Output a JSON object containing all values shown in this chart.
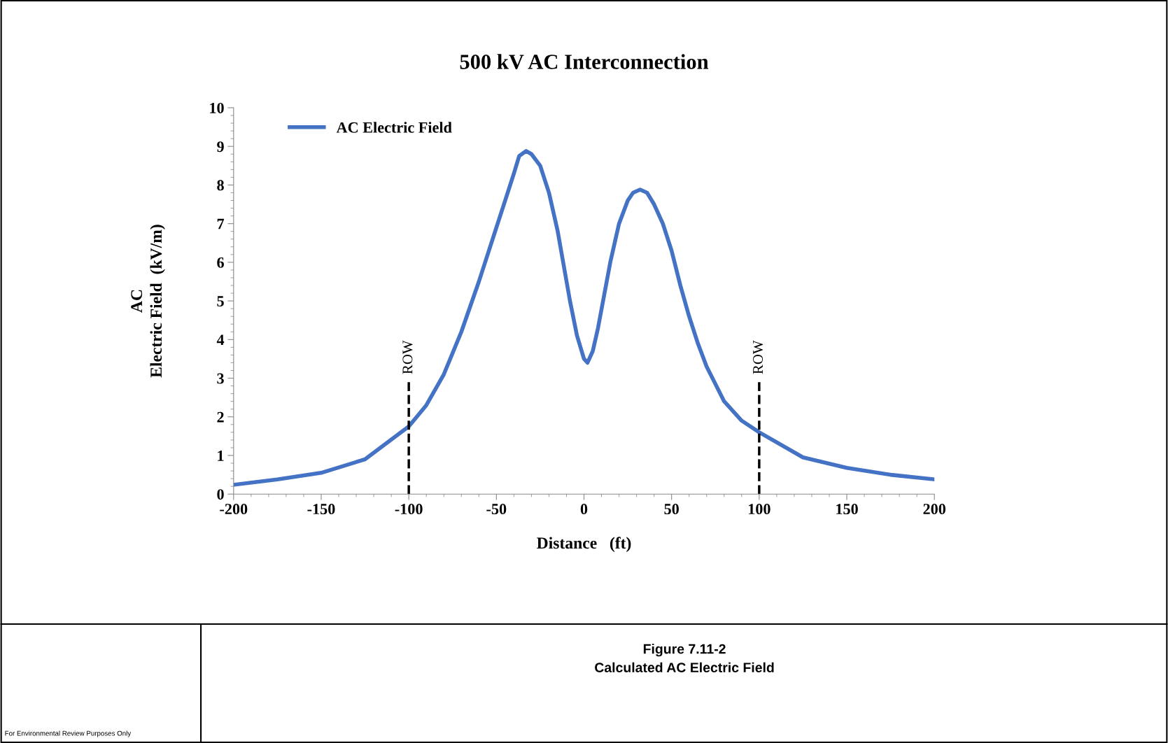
{
  "chart_data": {
    "type": "line",
    "title": "500 kV AC Interconnection",
    "xlabel": "Distance   (ft)",
    "ylabel": "AC\nElectric Field  (kV/m)",
    "series": [
      {
        "name": "AC Electric Field",
        "color": "#4472c4",
        "x": [
          -200,
          -175,
          -150,
          -125,
          -100,
          -90,
          -80,
          -70,
          -60,
          -50,
          -45,
          -40,
          -37,
          -33,
          -30,
          -25,
          -20,
          -15,
          -8,
          -4,
          0,
          2,
          5,
          8,
          15,
          20,
          25,
          28,
          32,
          36,
          40,
          45,
          50,
          55,
          60,
          65,
          70,
          80,
          90,
          100,
          125,
          150,
          175,
          200
        ],
        "values": [
          0.24,
          0.38,
          0.55,
          0.9,
          1.75,
          2.3,
          3.1,
          4.2,
          5.5,
          6.9,
          7.6,
          8.3,
          8.75,
          8.88,
          8.8,
          8.5,
          7.8,
          6.8,
          5.0,
          4.1,
          3.5,
          3.4,
          3.7,
          4.3,
          6.0,
          7.0,
          7.6,
          7.8,
          7.88,
          7.8,
          7.5,
          7.0,
          6.3,
          5.4,
          4.6,
          3.9,
          3.3,
          2.4,
          1.9,
          1.6,
          0.95,
          0.68,
          0.5,
          0.38
        ]
      }
    ],
    "xlim": [
      -200,
      200
    ],
    "xticks": [
      -200,
      -150,
      -100,
      -50,
      0,
      50,
      100,
      150,
      200
    ],
    "ylim": [
      0,
      10
    ],
    "yticks": [
      0,
      1,
      2,
      3,
      4,
      5,
      6,
      7,
      8,
      9,
      10
    ],
    "ref_lines": [
      {
        "axis": "x",
        "value": -100,
        "label": "ROW",
        "color": "#000000",
        "line_style": "dashed"
      },
      {
        "axis": "x",
        "value": 100,
        "label": "ROW",
        "color": "#000000",
        "line_style": "dashed"
      }
    ],
    "legend": "top left",
    "grid": false,
    "marker": "none",
    "line_style": "solid",
    "annotations": [
      "Figure 7.11-2",
      "Calculated AC Electric Field",
      "For Environmental Review Purposes Only"
    ]
  }
}
